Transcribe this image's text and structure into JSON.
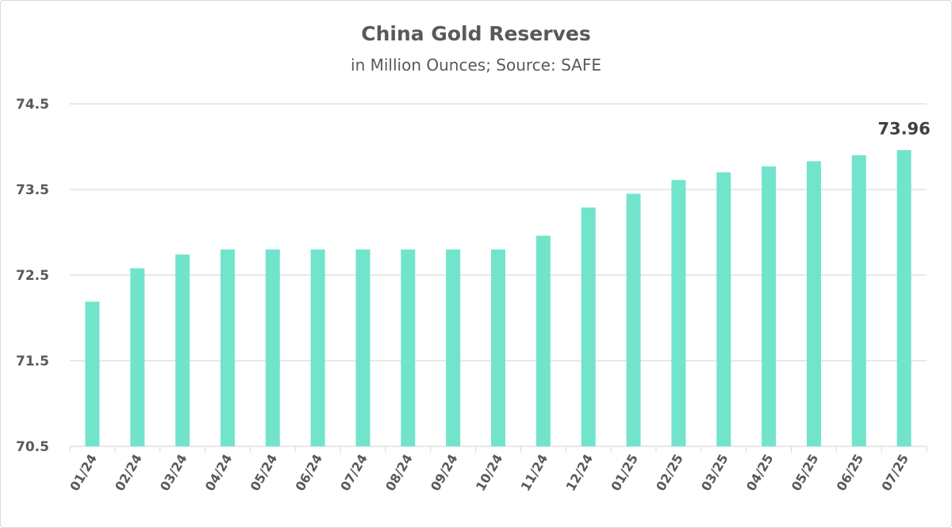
{
  "chart_data": {
    "type": "bar",
    "title": "China Gold Reserves",
    "subtitle": "in Million Ounces; Source: SAFE",
    "xlabel": "",
    "ylabel": "",
    "ylim": [
      70.5,
      74.5
    ],
    "yticks": [
      "70.5",
      "71.5",
      "72.5",
      "73.5",
      "74.5"
    ],
    "grid": true,
    "categories": [
      "01/24",
      "02/24",
      "03/24",
      "04/24",
      "05/24",
      "06/24",
      "07/24",
      "08/24",
      "09/24",
      "10/24",
      "11/24",
      "12/24",
      "01/25",
      "02/25",
      "03/25",
      "04/25",
      "05/25",
      "06/25",
      "07/25"
    ],
    "values": [
      72.19,
      72.58,
      72.74,
      72.8,
      72.8,
      72.8,
      72.8,
      72.8,
      72.8,
      72.8,
      72.96,
      73.29,
      73.45,
      73.61,
      73.7,
      73.77,
      73.83,
      73.9,
      73.96
    ],
    "data_label": {
      "category": "07/25",
      "text": "73.96"
    },
    "bar_color": "#72e4cc"
  }
}
